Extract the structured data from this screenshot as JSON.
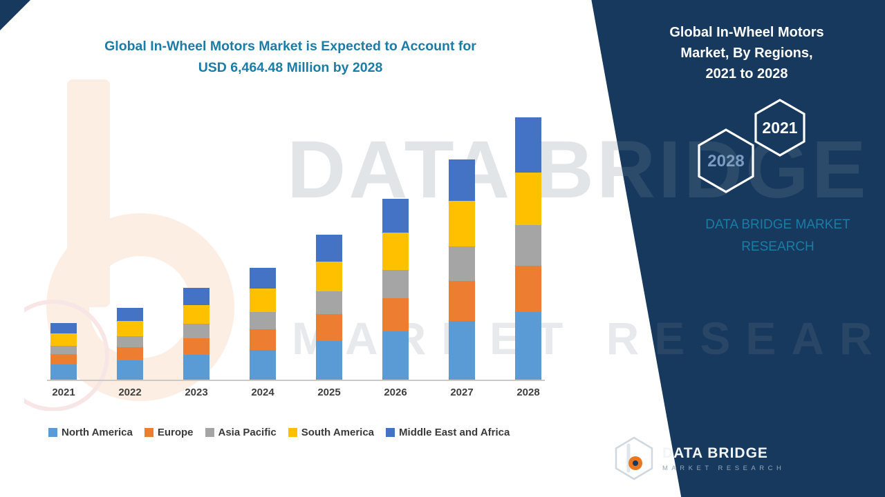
{
  "colors": {
    "navy": "#17395d",
    "teal": "#1b7ca8",
    "north_america": "#5B9BD5",
    "europe": "#ED7D31",
    "asia_pacific": "#A5A5A5",
    "south_america": "#FFC000",
    "middle_east_africa": "#4472C4",
    "logo_orange": "#e87722"
  },
  "left": {
    "title_lines": [
      "Global In-Wheel Motors Market is Expected to Account for",
      "USD 6,464.48 Million by 2028"
    ]
  },
  "watermark": {
    "line1": "DATA BRIDGE",
    "line2": "MARKET RESEARCH"
  },
  "right_panel": {
    "title_lines": [
      "Global In-Wheel Motors",
      "Market, By Regions,",
      "2021 to 2028"
    ],
    "hexagon_back_label": "2028",
    "hexagon_front_label": "2021",
    "brand_lines": [
      "DATA BRIDGE MARKET",
      "RESEARCH"
    ],
    "logo": {
      "name": "DATA BRIDGE",
      "subtitle": "MARKET RESEARCH"
    }
  },
  "chart_data": {
    "type": "bar",
    "stacked": true,
    "title": "Global In-Wheel Motors Market, By Regions, 2021 to 2028",
    "unit": "USD Million",
    "forecast_total_2028": 6464.48,
    "categories": [
      "2021",
      "2022",
      "2023",
      "2024",
      "2025",
      "2026",
      "2027",
      "2028"
    ],
    "series": [
      {
        "name": "North America",
        "color": "#5B9BD5",
        "values": [
          380,
          480,
          610,
          740,
          960,
          1190,
          1440,
          1660
        ]
      },
      {
        "name": "Europe",
        "color": "#ED7D31",
        "values": [
          250,
          320,
          410,
          500,
          650,
          810,
          990,
          1150
        ]
      },
      {
        "name": "Asia Pacific",
        "color": "#A5A5A5",
        "values": [
          210,
          270,
          350,
          430,
          560,
          700,
          860,
          1000
        ]
      },
      {
        "name": "South America",
        "color": "#FFC000",
        "values": [
          290,
          370,
          470,
          570,
          740,
          920,
          1120,
          1300
        ]
      },
      {
        "name": "Middle East and Africa",
        "color": "#4472C4",
        "values": [
          260,
          330,
          420,
          510,
          670,
          830,
          1020,
          1354.48
        ]
      }
    ],
    "ylim": [
      0,
      6800
    ],
    "grid": false,
    "y_axis_visible": false,
    "legend_position": "bottom"
  }
}
